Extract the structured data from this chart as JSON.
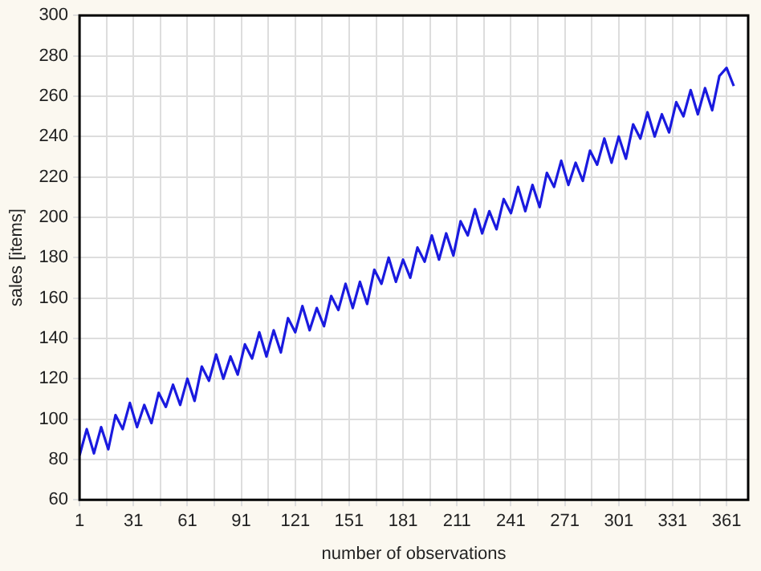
{
  "chart_data": {
    "type": "line",
    "xlabel": "number of observations",
    "ylabel": "sales [items]",
    "x": [
      1,
      5,
      9,
      13,
      17,
      21,
      25,
      29,
      33,
      37,
      41,
      45,
      49,
      53,
      57,
      61,
      65,
      69,
      73,
      77,
      81,
      85,
      89,
      93,
      97,
      101,
      105,
      109,
      113,
      117,
      121,
      125,
      129,
      133,
      137,
      141,
      145,
      149,
      153,
      157,
      161,
      165,
      169,
      173,
      177,
      181,
      185,
      189,
      193,
      197,
      201,
      205,
      209,
      213,
      217,
      221,
      225,
      229,
      233,
      237,
      241,
      245,
      249,
      253,
      257,
      261,
      265,
      269,
      273,
      277,
      281,
      285,
      289,
      293,
      297,
      301,
      305,
      309,
      313,
      317,
      321,
      325,
      329,
      333,
      337,
      341,
      345,
      349,
      353,
      357,
      361,
      365
    ],
    "series": [
      {
        "color": "#1a1adf",
        "values": [
          82,
          95,
          83,
          96,
          85,
          102,
          95,
          108,
          96,
          107,
          98,
          113,
          106,
          117,
          107,
          120,
          109,
          126,
          119,
          132,
          120,
          131,
          122,
          137,
          130,
          143,
          131,
          144,
          133,
          150,
          143,
          156,
          144,
          155,
          146,
          161,
          154,
          167,
          155,
          168,
          157,
          174,
          167,
          180,
          168,
          179,
          170,
          185,
          178,
          191,
          179,
          192,
          181,
          198,
          191,
          204,
          192,
          203,
          194,
          209,
          202,
          215,
          203,
          216,
          205,
          222,
          215,
          228,
          216,
          227,
          218,
          233,
          226,
          239,
          227,
          240,
          229,
          246,
          239,
          252,
          240,
          251,
          242,
          257,
          250,
          263,
          251,
          264,
          253,
          270,
          274,
          265
        ]
      }
    ],
    "xlim": [
      1,
      373
    ],
    "xticks": [
      1,
      {
        "value": 16,
        "label": null
      },
      31,
      {
        "value": 46,
        "label": null
      },
      61,
      {
        "value": 76,
        "label": null
      },
      91,
      {
        "value": 106,
        "label": null
      },
      121,
      {
        "value": 136,
        "label": null
      },
      151,
      {
        "value": 166,
        "label": null
      },
      181,
      {
        "value": 196,
        "label": null
      },
      211,
      {
        "value": 226,
        "label": null
      },
      241,
      {
        "value": 256,
        "label": null
      },
      271,
      {
        "value": 286,
        "label": null
      },
      301,
      {
        "value": 316,
        "label": null
      },
      331,
      {
        "value": 346,
        "label": null
      },
      361
    ],
    "ylim": [
      60,
      300
    ],
    "yticks": [
      60,
      80,
      100,
      120,
      140,
      160,
      180,
      200,
      220,
      240,
      260,
      280,
      300
    ],
    "grid": true,
    "legend": false,
    "marker": "none",
    "line_style": "solid"
  }
}
